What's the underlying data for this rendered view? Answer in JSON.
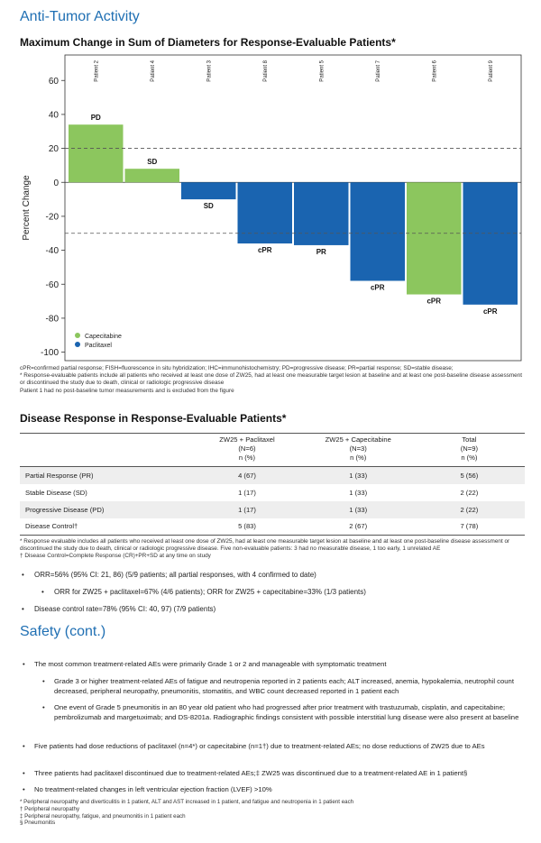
{
  "section1_title": "Anti-Tumor Activity",
  "chart_title": "Maximum Change in Sum of Diameters for Response-Evaluable Patients*",
  "chart_data": {
    "type": "bar",
    "title": "Maximum Change in Sum of Diameters for Response-Evaluable Patients*",
    "ylabel": "Percent Change",
    "xlabel": "",
    "ylim": [
      -105,
      75
    ],
    "yticks": [
      60,
      40,
      20,
      0,
      -20,
      -40,
      -60,
      -80,
      -100
    ],
    "reference_lines": [
      20,
      -30
    ],
    "categories": [
      "Patient 2",
      "Patient 4",
      "Patient 3",
      "Patient 8",
      "Patient 5",
      "Patient 7",
      "Patient 6",
      "Patient 9"
    ],
    "values": [
      34,
      8,
      -10,
      -36,
      -37,
      -58,
      -66,
      -72
    ],
    "responses": [
      "PD",
      "SD",
      "SD",
      "cPR",
      "PR",
      "cPR",
      "cPR",
      "cPR"
    ],
    "treatment": [
      "Capecitabine",
      "Capecitabine",
      "Paclitaxel",
      "Paclitaxel",
      "Paclitaxel",
      "Paclitaxel",
      "Capecitabine",
      "Paclitaxel"
    ],
    "legend": [
      {
        "name": "Capecitabine",
        "color": "#8cc65e"
      },
      {
        "name": "Paclitaxel",
        "color": "#1a64b0"
      }
    ],
    "legend_position": "bottom-left",
    "grid": false
  },
  "chart_footnotes": [
    "cPR=confirmed partial response; FISH=fluorescence in situ hybridization; IHC=immunohistochemistry; PD=progressive disease; PR=partial response; SD=stable disease;",
    "* Response-evaluable patients include all patients who received at least one dose of ZW25, had at least one measurable target lesion at baseline and at least one post-baseline disease assessment or discontinued the study due to death, clinical or radiologic progressive disease",
    "Patient 1 had no post-baseline tumor measurements and is excluded from the figure"
  ],
  "table_title": "Disease Response in Response-Evaluable Patients*",
  "table": {
    "headers": [
      {
        "l1": "",
        "l2": "",
        "l3": ""
      },
      {
        "l1": "ZW25 + Paclitaxel",
        "l2": "(N=6)",
        "l3": "n (%)"
      },
      {
        "l1": "ZW25 + Capecitabine",
        "l2": "(N=3)",
        "l3": "n (%)"
      },
      {
        "l1": "Total",
        "l2": "(N=9)",
        "l3": "n (%)"
      }
    ],
    "rows": [
      [
        "Partial Response (PR)",
        "4 (67)",
        "1 (33)",
        "5 (56)"
      ],
      [
        "Stable Disease (SD)",
        "1 (17)",
        "1 (33)",
        "2 (22)"
      ],
      [
        "Progressive Disease (PD)",
        "1 (17)",
        "1 (33)",
        "2 (22)"
      ],
      [
        "Disease Control†",
        "5 (83)",
        "2 (67)",
        "7 (78)"
      ]
    ]
  },
  "table_footnotes": [
    "* Response evaluable includes all patients who received at least one dose of ZW25, had at least one measurable target lesion at baseline and at least one post-baseline disease assessment or discontinued the study due to death, clinical or radiologic progressive disease. Five non-evaluable patients: 3 had no measurable disease, 1 too early, 1 unrelated AE",
    "† Disease Control=Complete Response (CR)+PR+SD at any time on study"
  ],
  "bullets1": [
    {
      "level": 1,
      "text": "ORR=56% (95% CI: 21, 86) (5/9 patients; all partial responses, with 4 confirmed to date)"
    },
    {
      "level": 2,
      "text": "ORR for ZW25 + paclitaxel=67% (4/6 patients); ORR for ZW25 + capecitabine=33% (1/3 patients)"
    },
    {
      "level": 1,
      "text": "Disease control rate=78% (95% CI: 40, 97) (7/9 patients)"
    }
  ],
  "section2_title": "Safety (cont.)",
  "bullets2": [
    {
      "level": 1,
      "text": "The most common treatment-related AEs were primarily Grade 1 or 2 and manageable with symptomatic treatment"
    },
    {
      "level": 2,
      "text": "Grade 3 or higher treatment-related AEs of fatigue and neutropenia reported in 2 patients each; ALT increased, anemia, hypokalemia, neutrophil count decreased, peripheral neuropathy, pneumonitis, stomatitis, and WBC count decreased reported in 1 patient each"
    },
    {
      "level": 2,
      "text": "One event of Grade 5 pneumonitis in an 80 year old patient who had progressed after prior treatment with trastuzumab, cisplatin, and capecitabine; pembrolizumab and margetuximab; and DS-8201a. Radiographic findings consistent with possible interstitial lung disease were also present at baseline"
    },
    {
      "level": 1,
      "text": "Five patients had dose reductions of paclitaxel (n=4*) or capecitabine (n=1†) due to treatment-related AEs; no dose reductions of ZW25 due to AEs"
    },
    {
      "level": 1,
      "text": "Three patients had paclitaxel discontinued due to treatment-related AEs;‡  ZW25 was discontinued due to a treatment-related AE in 1 patient§"
    },
    {
      "level": 1,
      "text": "No treatment-related changes in left ventricular ejection fraction (LVEF) >10%"
    }
  ],
  "bullet_char": "•",
  "safety_footnotes": [
    "* Peripheral neuropathy and diverticulitis in 1 patient, ALT and AST increased in 1 patient, and fatigue and neutropenia in 1 patient each",
    "† Peripheral neuropathy",
    "‡ Peripheral neuropathy, fatigue, and pneumonitis in 1 patient each",
    "§ Pneumonitis"
  ]
}
